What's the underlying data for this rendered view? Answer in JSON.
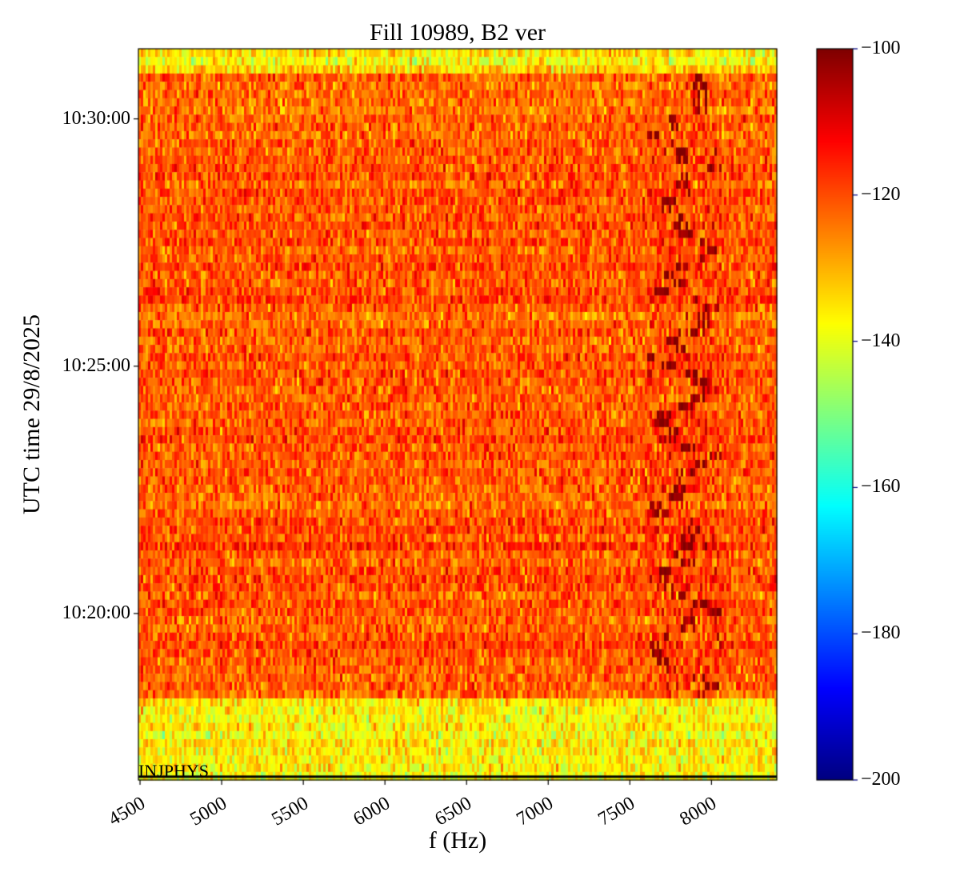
{
  "chart_data": {
    "type": "heatmap",
    "title": "Fill 10989, B2 ver",
    "xlabel": "f (Hz)",
    "ylabel": "UTC time 29/8/2025",
    "xlim": [
      4490,
      8400
    ],
    "ylim_time": [
      "10:16:38",
      "10:31:25"
    ],
    "x_ticks": [
      4500,
      5000,
      5500,
      6000,
      6500,
      7000,
      7500,
      8000
    ],
    "y_ticks": [
      "10:20:00",
      "10:25:00",
      "10:30:00"
    ],
    "colormap": "jet",
    "colorbar": {
      "min": -200,
      "max": -100,
      "ticks": [
        -100,
        -120,
        -140,
        -160,
        -180,
        -200
      ],
      "tick_labels": [
        "−100",
        "−120",
        "−140",
        "−160",
        "−180",
        "−200"
      ]
    },
    "regions": [
      {
        "from": "10:30:55",
        "to": "10:31:25",
        "mean_level": -135
      },
      {
        "from": "10:18:17",
        "to": "10:30:55",
        "mean_level": -121
      },
      {
        "from": "10:16:38",
        "to": "10:18:17",
        "mean_level": -136
      }
    ],
    "feature": {
      "description_level": -102,
      "f_range": [
        7600,
        8050
      ],
      "from": "10:18:17",
      "to": "10:30:55"
    },
    "annotation": {
      "label": "INJPHYS",
      "time": "10:16:42"
    }
  }
}
